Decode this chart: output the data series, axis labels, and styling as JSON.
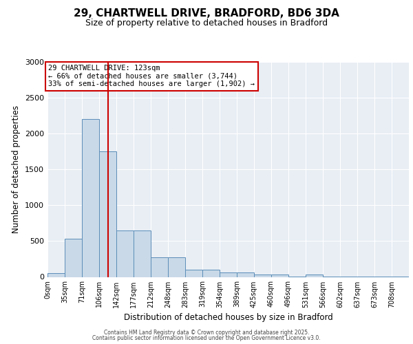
{
  "title": "29, CHARTWELL DRIVE, BRADFORD, BD6 3DA",
  "subtitle": "Size of property relative to detached houses in Bradford",
  "xlabel": "Distribution of detached houses by size in Bradford",
  "ylabel": "Number of detached properties",
  "bar_color": "#c9d9e8",
  "bar_edge_color": "#5b8db8",
  "background_color": "#e8eef4",
  "categories": [
    "0sqm",
    "35sqm",
    "71sqm",
    "106sqm",
    "142sqm",
    "177sqm",
    "212sqm",
    "248sqm",
    "283sqm",
    "319sqm",
    "354sqm",
    "389sqm",
    "425sqm",
    "460sqm",
    "496sqm",
    "531sqm",
    "566sqm",
    "602sqm",
    "637sqm",
    "673sqm",
    "708sqm"
  ],
  "values": [
    50,
    530,
    2200,
    1750,
    650,
    650,
    270,
    270,
    100,
    100,
    65,
    65,
    30,
    30,
    5,
    30,
    5,
    5,
    5,
    5,
    5
  ],
  "bin_width": 35,
  "red_line_x": 123,
  "ylim": [
    0,
    3000
  ],
  "yticks": [
    0,
    500,
    1000,
    1500,
    2000,
    2500,
    3000
  ],
  "annotation_text": "29 CHARTWELL DRIVE: 123sqm\n← 66% of detached houses are smaller (3,744)\n33% of semi-detached houses are larger (1,902) →",
  "annotation_box_color": "#ffffff",
  "annotation_box_edge": "#cc0000",
  "red_line_color": "#cc0000",
  "footer1": "Contains HM Land Registry data © Crown copyright and database right 2025.",
  "footer2": "Contains public sector information licensed under the Open Government Licence v3.0."
}
